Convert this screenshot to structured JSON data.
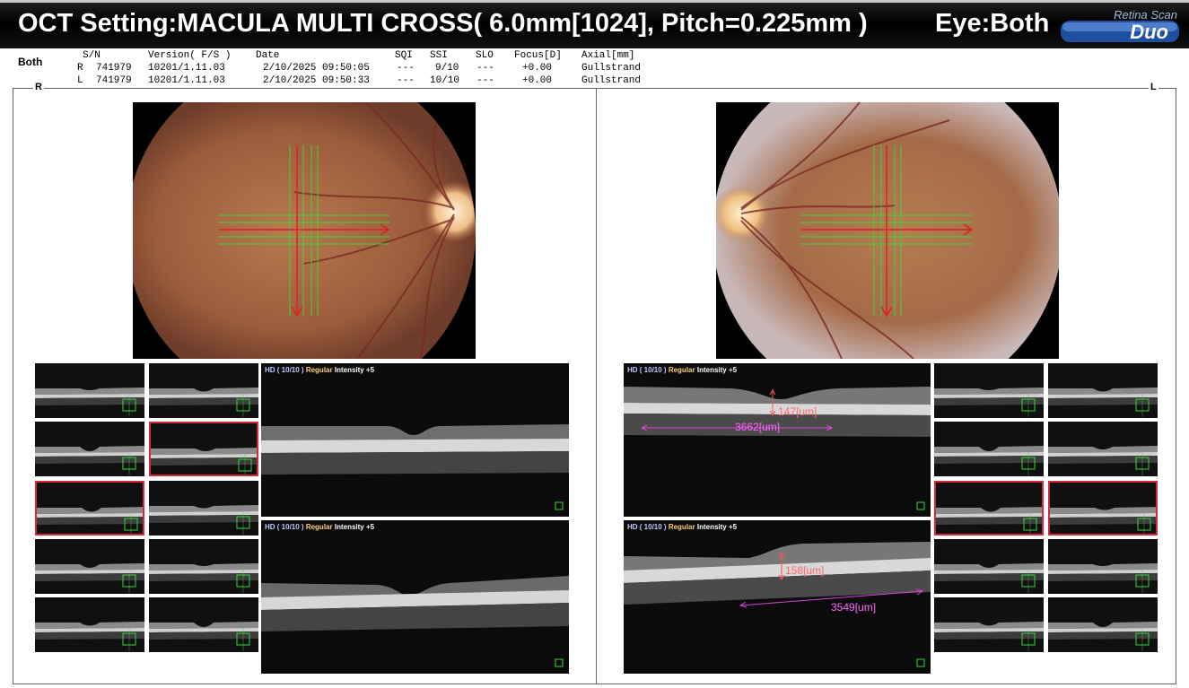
{
  "header": {
    "title": "OCT Setting:MACULA MULTI CROSS( 6.0mm[1024], Pitch=0.225mm )",
    "eye": "Eye:Both",
    "logo_top": "Retina Scan",
    "logo_bottom": "Duo"
  },
  "info": {
    "eye_label": "Both",
    "headers": [
      "S/N",
      "Version( F/S )",
      "Date",
      "SQI",
      "SSI",
      "SLO",
      "Focus[D]",
      "Axial[mm]"
    ],
    "rows": [
      {
        "eye": "R",
        "sn": "741979",
        "version": "10201/1.11.03",
        "date": "2/10/2025 09:50:05",
        "sqi": "---",
        "ssi": "9/10",
        "slo": "---",
        "focus": "+0.00",
        "axial": "Gullstrand"
      },
      {
        "eye": "L",
        "sn": "741979",
        "version": "10201/1.11.03",
        "date": "2/10/2025 09:50:33",
        "sqi": "---",
        "ssi": "10/10",
        "slo": "---",
        "focus": "+0.00",
        "axial": "Gullstrand"
      }
    ]
  },
  "panels": {
    "right_label": "R",
    "left_label": "L"
  },
  "bscan_header": {
    "hd": "HD ( 10/10 )",
    "mode": "Regular",
    "intensity": "Intensity +5"
  },
  "measurements": {
    "l_top_thickness": "147[um]",
    "l_top_width": "3662[um]",
    "l_bottom_thickness": "158[um]",
    "l_bottom_width": "3549[um]"
  },
  "colors": {
    "selection_border": "#d4283c",
    "scan_line_green": "#39d639",
    "scan_line_red": "#e02020",
    "measure_magenta": "#e040e0",
    "measure_red": "#ff5050"
  }
}
